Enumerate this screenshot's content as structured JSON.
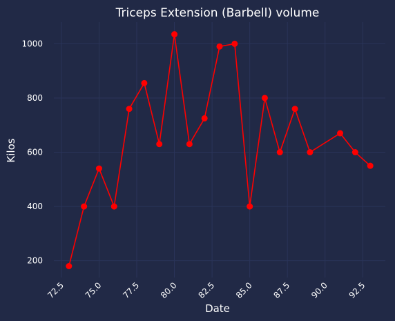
{
  "chart_data": {
    "type": "line",
    "title": "Triceps Extension (Barbell) volume",
    "xlabel": "Date",
    "ylabel": "Kilos",
    "xlim": [
      72.0,
      94.0
    ],
    "ylim": [
      138,
      1080
    ],
    "xticks": [
      72.5,
      75.0,
      77.5,
      80.0,
      82.5,
      85.0,
      87.5,
      90.0,
      92.5
    ],
    "xtick_labels": [
      "72.5",
      "75.0",
      "77.5",
      "80.0",
      "82.5",
      "85.0",
      "87.5",
      "90.0",
      "92.5"
    ],
    "yticks": [
      200,
      400,
      600,
      800,
      1000
    ],
    "ytick_labels": [
      "200",
      "400",
      "600",
      "800",
      "1000"
    ],
    "grid": true,
    "colors": {
      "background": "#212946",
      "grid": "#2A3459",
      "series": "#ff0000",
      "text": "#ffffff"
    },
    "series": [
      {
        "x": [
          73,
          74,
          75,
          76,
          77,
          78,
          79,
          80,
          81,
          82,
          83,
          84,
          85,
          86,
          87,
          88,
          89,
          91,
          92,
          93
        ],
        "values": [
          180,
          400,
          540,
          400,
          760,
          855,
          630,
          1035,
          630,
          725,
          990,
          1000,
          400,
          800,
          600,
          760,
          600,
          670,
          600,
          550
        ]
      }
    ]
  }
}
